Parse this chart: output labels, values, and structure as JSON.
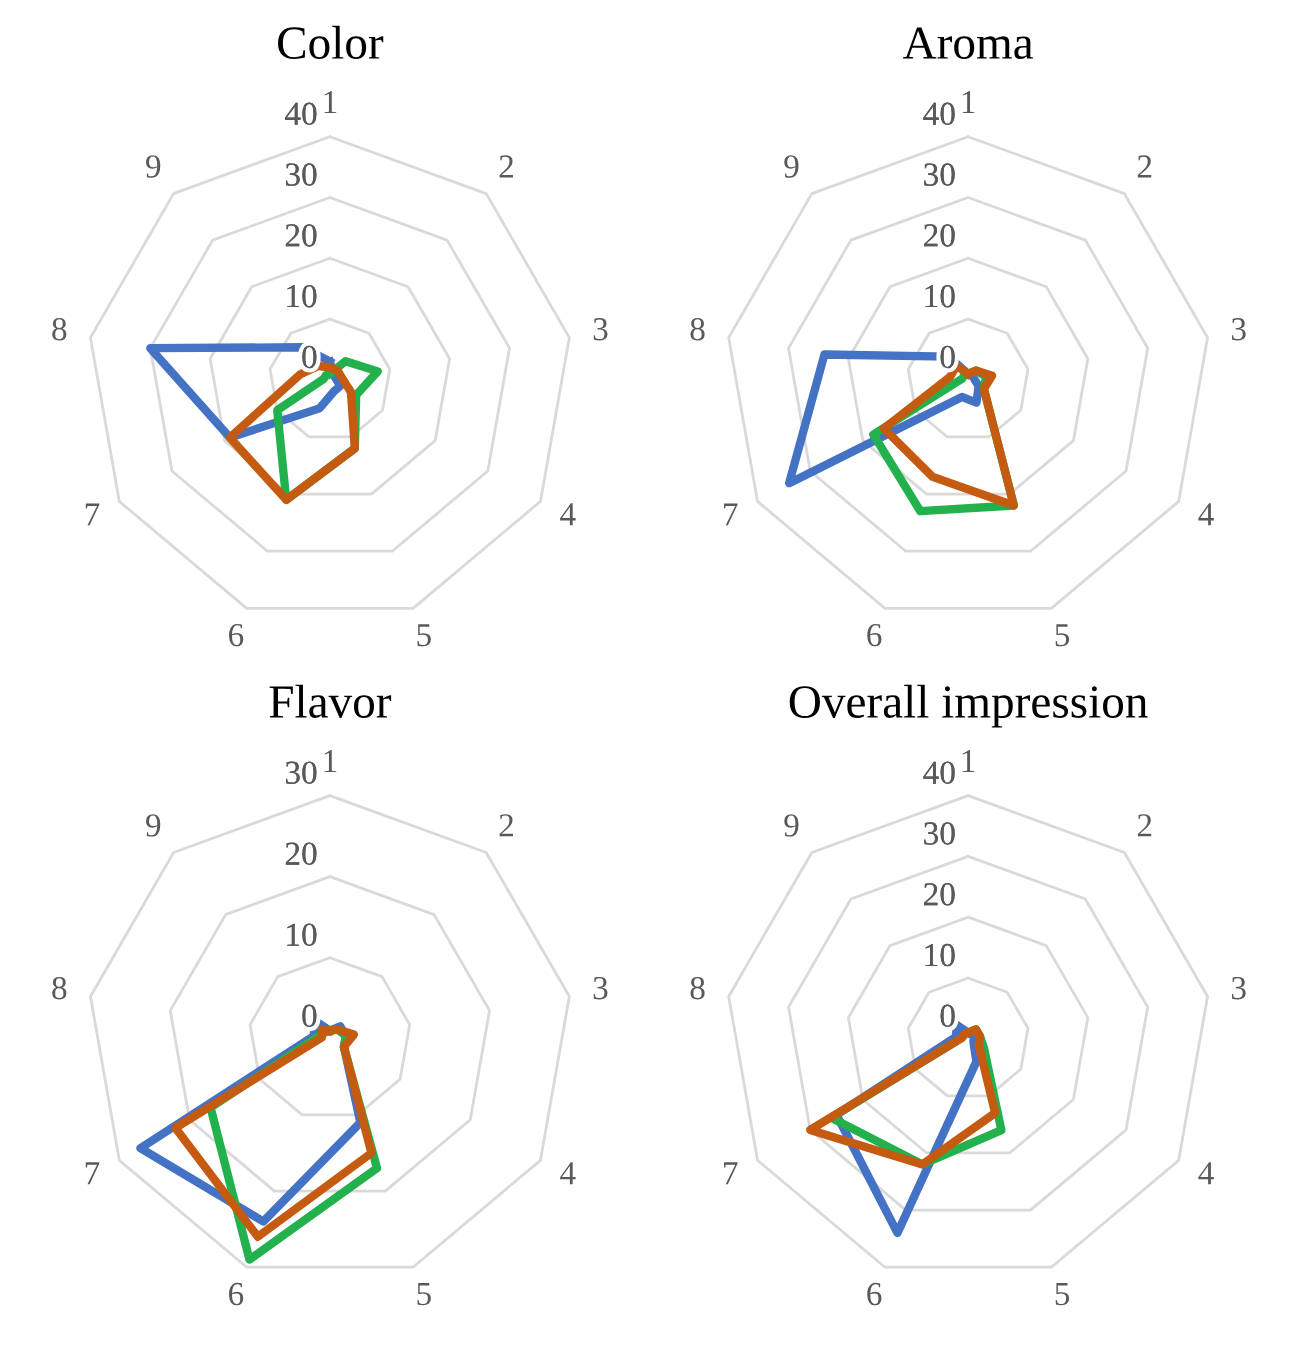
{
  "chart_data": [
    {
      "type": "radar",
      "title": "Color",
      "categories": [
        "1",
        "2",
        "3",
        "4",
        "5",
        "6",
        "7",
        "8",
        "9"
      ],
      "ylim": [
        0,
        40
      ],
      "yticks": [
        0,
        10,
        20,
        30,
        40
      ],
      "grid": true,
      "series": [
        {
          "color": "#4472c4",
          "values": [
            3,
            1,
            1,
            2,
            2,
            5,
            19,
            30,
            7
          ]
        },
        {
          "color": "#22b14c",
          "values": [
            1,
            4,
            8,
            5,
            12,
            21,
            10,
            1,
            1
          ]
        },
        {
          "color": "#c55a11",
          "values": [
            2,
            2,
            2,
            4,
            12,
            21,
            19,
            5,
            3
          ]
        }
      ]
    },
    {
      "type": "radar",
      "title": "Aroma",
      "categories": [
        "1",
        "2",
        "3",
        "4",
        "5",
        "6",
        "7",
        "8",
        "9"
      ],
      "ylim": [
        0,
        40
      ],
      "yticks": [
        0,
        10,
        20,
        30,
        40
      ],
      "grid": true,
      "series": [
        {
          "color": "#4472c4",
          "values": [
            1,
            1,
            1,
            2,
            4,
            3,
            34,
            24,
            5
          ]
        },
        {
          "color": "#22b14c",
          "values": [
            1,
            2,
            3,
            3,
            22,
            23,
            18,
            1,
            1
          ]
        },
        {
          "color": "#c55a11",
          "values": [
            1,
            2,
            4,
            3,
            22,
            17,
            16,
            3,
            3
          ]
        }
      ]
    },
    {
      "type": "radar",
      "title": "Flavor",
      "categories": [
        "1",
        "2",
        "3",
        "4",
        "5",
        "6",
        "7",
        "8",
        "9"
      ],
      "ylim": [
        0,
        30
      ],
      "yticks": [
        0,
        10,
        20,
        30
      ],
      "grid": true,
      "series": [
        {
          "color": "#4472c4",
          "values": [
            1,
            2,
            2,
            2,
            11,
            24,
            27,
            2,
            3
          ]
        },
        {
          "color": "#22b14c",
          "values": [
            1,
            1.5,
            2,
            2,
            17,
            29,
            17,
            1.5,
            1
          ]
        },
        {
          "color": "#c55a11",
          "values": [
            1,
            1.5,
            3,
            2,
            15,
            26,
            22,
            1,
            1.5
          ]
        }
      ]
    },
    {
      "type": "radar",
      "title": "Overall impression",
      "categories": [
        "1",
        "2",
        "3",
        "4",
        "5",
        "6",
        "7",
        "8",
        "9"
      ],
      "ylim": [
        0,
        40
      ],
      "yticks": [
        0,
        10,
        20,
        30,
        40
      ],
      "grid": true,
      "series": [
        {
          "color": "#4472c4",
          "values": [
            1,
            1,
            1,
            1,
            4,
            34,
            25,
            2,
            3
          ]
        },
        {
          "color": "#22b14c",
          "values": [
            1,
            2,
            2,
            3,
            16,
            22,
            26,
            1,
            1
          ]
        },
        {
          "color": "#c55a11",
          "values": [
            1,
            2,
            2,
            2,
            13,
            22,
            30,
            1,
            1
          ]
        }
      ]
    }
  ]
}
